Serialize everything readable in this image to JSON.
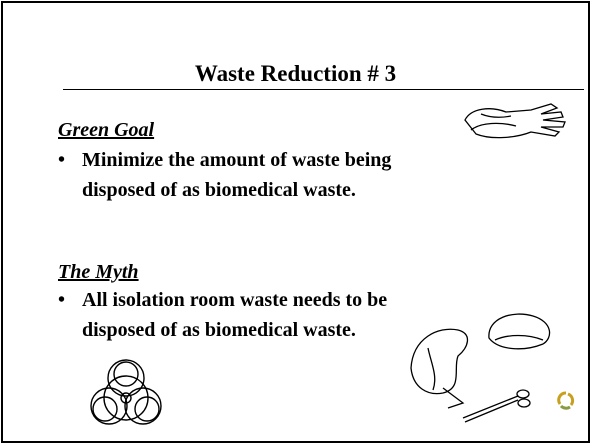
{
  "header": {
    "title": "Waste Reduction # 3"
  },
  "sections": [
    {
      "heading": "Green Goal",
      "bullet": "Minimize the amount of waste being disposed of as biomedical waste."
    },
    {
      "heading": "The Myth",
      "bullet": "All isolation room waste needs to be disposed of as biomedical waste."
    }
  ]
}
